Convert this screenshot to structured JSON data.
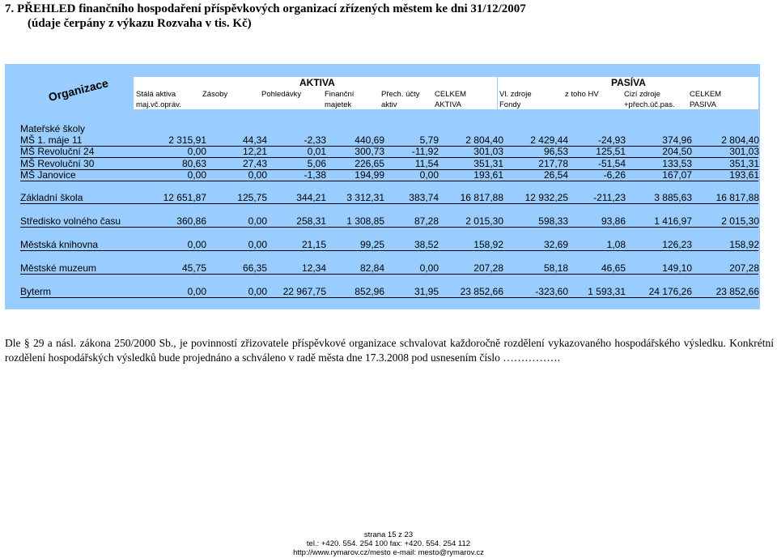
{
  "title": {
    "line1": "7.  PŘEHLED finančního hospodaření příspěvkových organizací zřízených městem ke dni 31/12/2007",
    "line2": "(údaje čerpány z výkazu Rozvaha v tis. Kč)"
  },
  "table": {
    "corner_label": "Organizace",
    "group_aktiva": "AKTIVA",
    "group_pasiva": "PASÍVA",
    "headers": [
      {
        "l1": "Stálá aktiva",
        "l2": "maj.vč.opráv."
      },
      {
        "l1": "Zásoby",
        "l2": ""
      },
      {
        "l1": "Pohledávky",
        "l2": ""
      },
      {
        "l1": "Finanční",
        "l2": "majetek"
      },
      {
        "l1": "Přech. účty",
        "l2": "aktiv"
      },
      {
        "l1": "CELKEM",
        "l2": "AKTIVA"
      },
      {
        "l1": "Vl. zdroje",
        "l2": "Fondy"
      },
      {
        "l1": "z toho HV",
        "l2": ""
      },
      {
        "l1": "Cizí zdroje",
        "l2": "+přech.úč.pas."
      },
      {
        "l1": "CELKEM",
        "l2": "PASIVA"
      }
    ],
    "section_ms": "Mateřské školy",
    "rows": [
      {
        "name": "MŠ 1. máje 11",
        "values": [
          "2 315,91",
          "44,34",
          "-2,33",
          "440,69",
          "5,79",
          "2 804,40",
          "2 429,44",
          "-24,93",
          "374,96",
          "2 804,40"
        ]
      },
      {
        "name": "MŠ Revoluční 24",
        "values": [
          "0,00",
          "12,21",
          "0,01",
          "300,73",
          "-11,92",
          "301,03",
          "96,53",
          "125,51",
          "204,50",
          "301,03"
        ]
      },
      {
        "name": "MŠ Revoluční 30",
        "values": [
          "80,63",
          "27,43",
          "5,06",
          "226,65",
          "11,54",
          "351,31",
          "217,78",
          "-51,54",
          "133,53",
          "351,31"
        ]
      },
      {
        "name": "MŠ Janovice",
        "values": [
          "0,00",
          "0,00",
          "-1,38",
          "194,99",
          "0,00",
          "193,61",
          "26,54",
          "-6,26",
          "167,07",
          "193,61"
        ]
      },
      {
        "name": "Základní škola",
        "values": [
          "12 651,87",
          "125,75",
          "344,21",
          "3 312,31",
          "383,74",
          "16 817,88",
          "12 932,25",
          "-211,23",
          "3 885,63",
          "16 817,88"
        ]
      },
      {
        "name": "Středisko volného času",
        "values": [
          "360,86",
          "0,00",
          "258,31",
          "1 308,85",
          "87,28",
          "2 015,30",
          "598,33",
          "93,86",
          "1 416,97",
          "2 015,30"
        ]
      },
      {
        "name": "Městská knihovna",
        "values": [
          "0,00",
          "0,00",
          "21,15",
          "99,25",
          "38,52",
          "158,92",
          "32,69",
          "1,08",
          "126,23",
          "158,92"
        ]
      },
      {
        "name": "Městské muzeum",
        "values": [
          "45,75",
          "66,35",
          "12,34",
          "82,84",
          "0,00",
          "207,28",
          "58,18",
          "46,65",
          "149,10",
          "207,28"
        ]
      },
      {
        "name": "Byterm",
        "values": [
          "0,00",
          "0,00",
          "22 967,75",
          "852,96",
          "31,95",
          "23 852,66",
          "-323,60",
          "1 593,31",
          "24 176,26",
          "23 852,66"
        ]
      }
    ]
  },
  "footer_text": "Dle § 29 a násl. zákona 250/2000 Sb., je povinností zřizovatele příspěvkové organizace schvalovat každoročně rozdělení vykazovaného hospodářského výsledku. Konkrétní rozdělení hospodářských výsledků bude projednáno a schváleno v radě města dne 17.3.2008 pod usnesením číslo …………….",
  "page_footer": {
    "page": "strana 15 z 23",
    "contacts": "tel.: +420. 554. 254 100      fax: +420. 554. 254 112",
    "web": "http://www.rymarov.cz/mesto       e-mail: mesto@rymarov.cz"
  }
}
